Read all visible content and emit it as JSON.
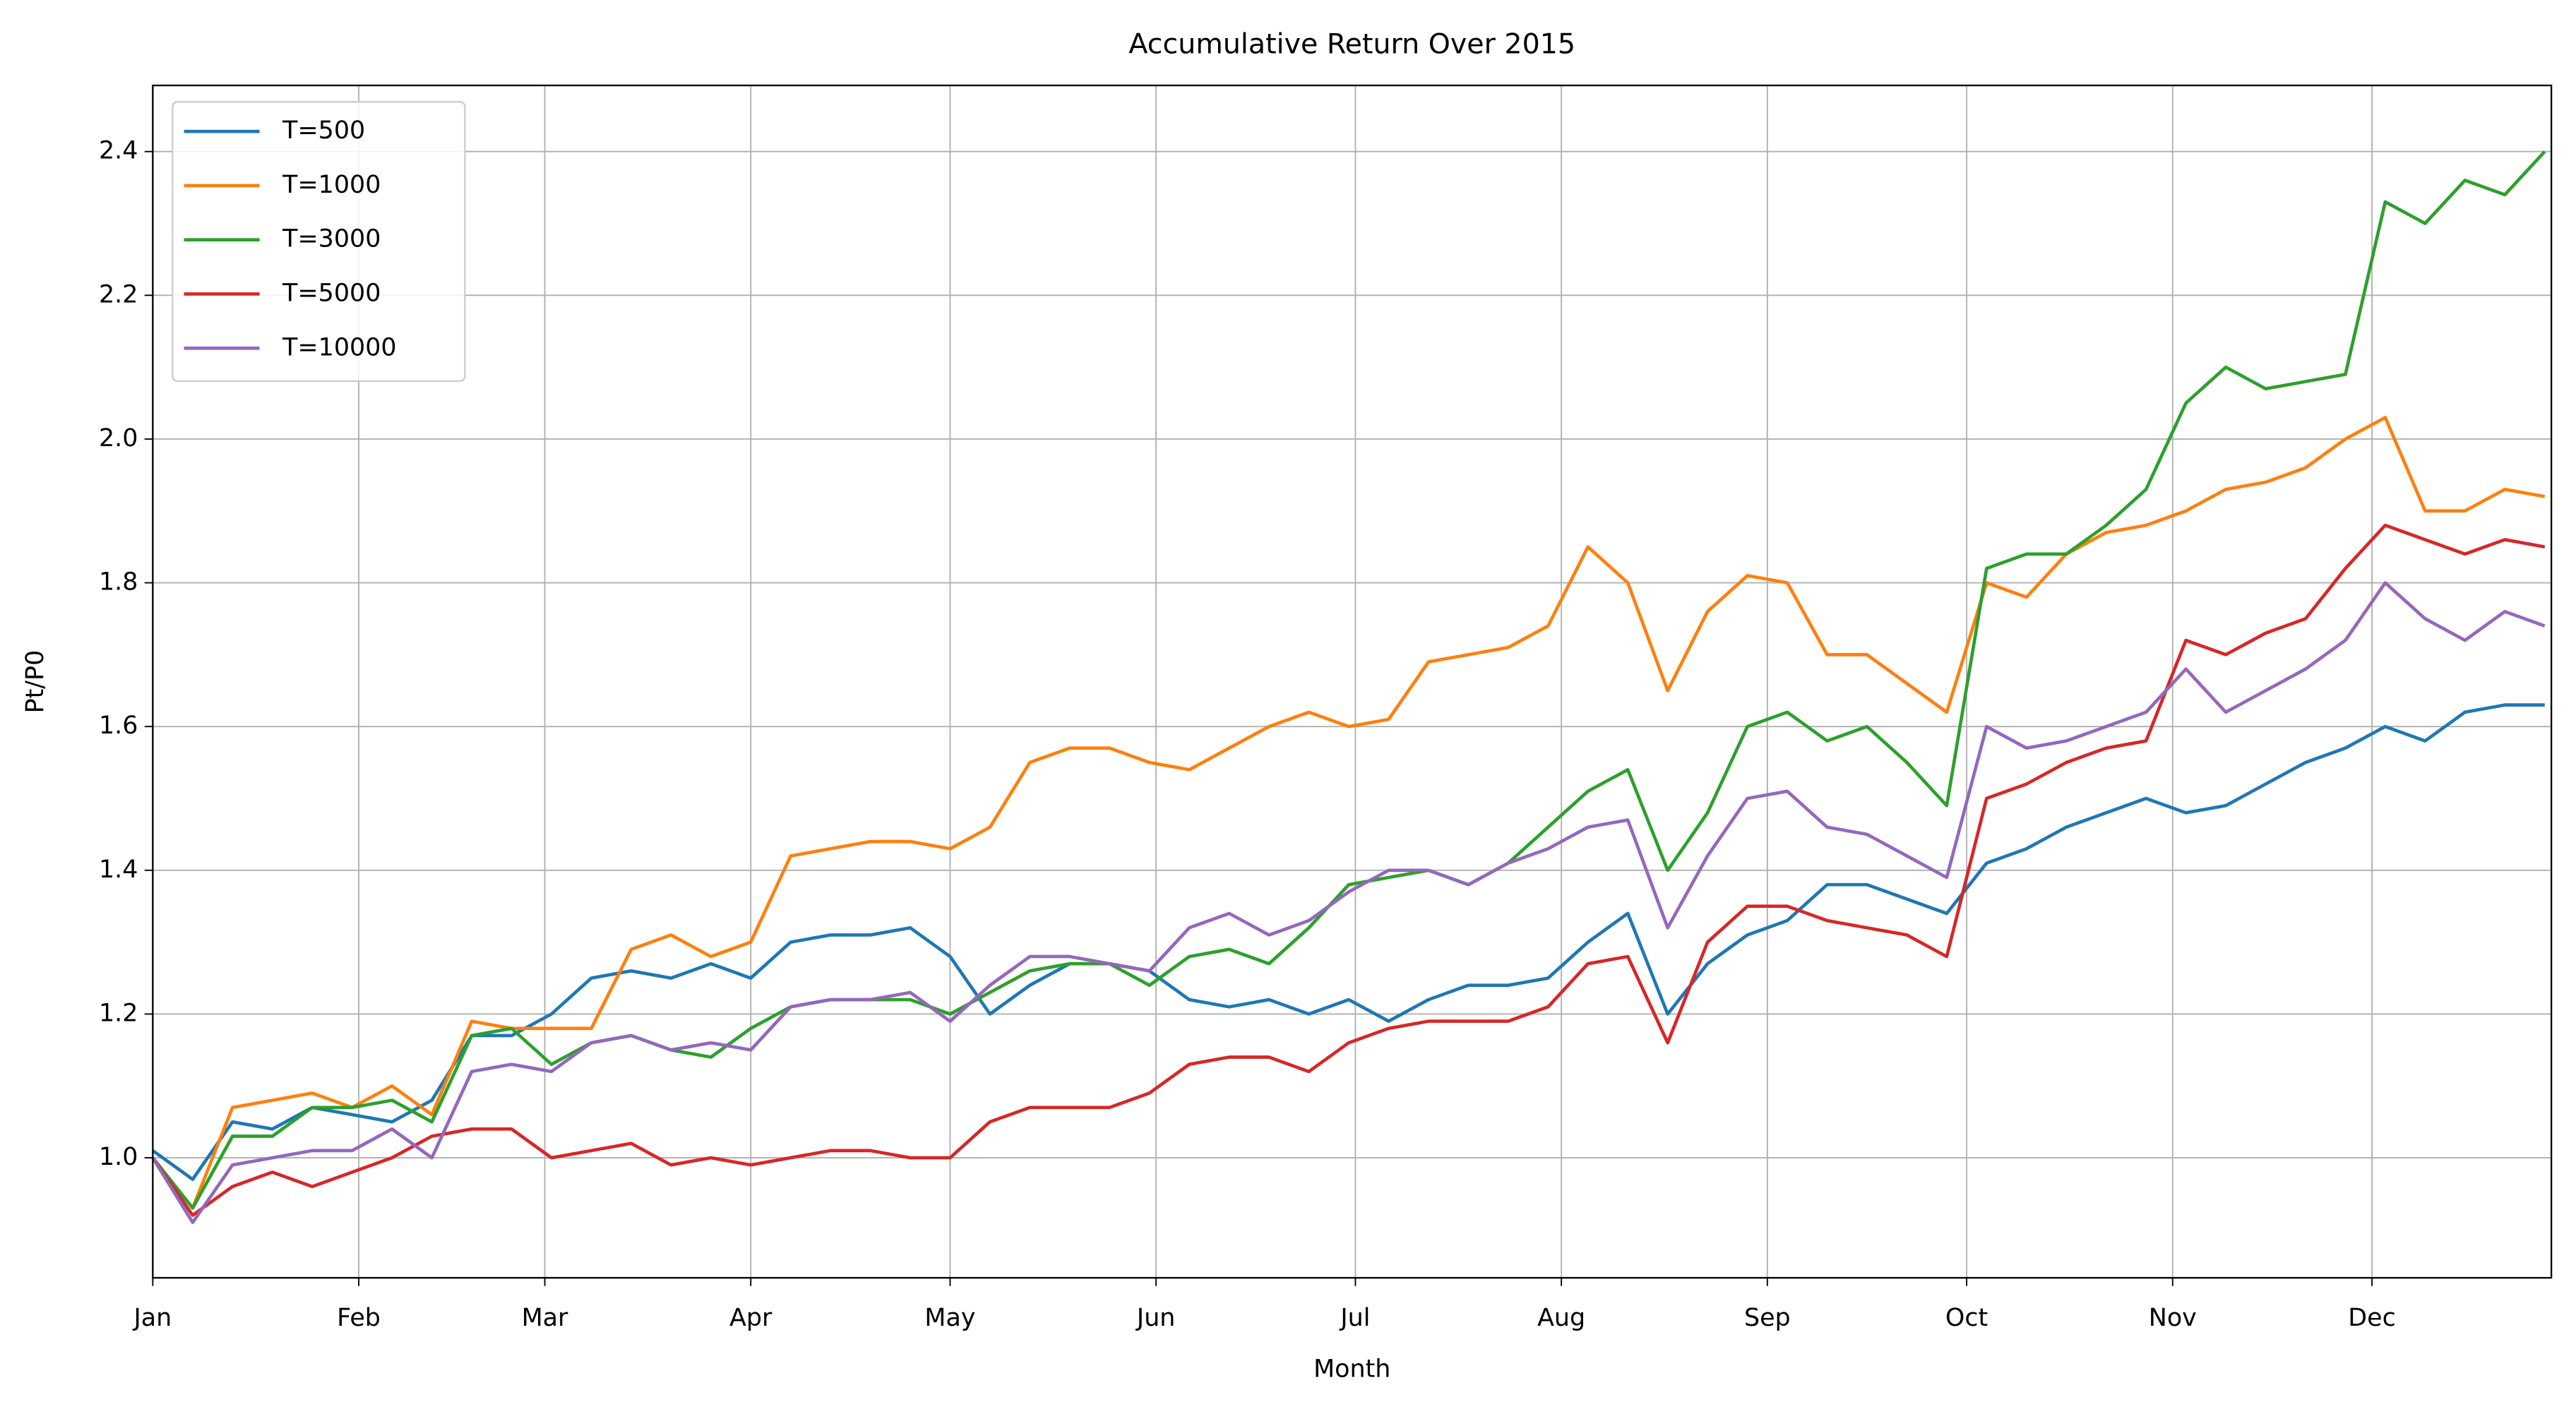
{
  "chart_data": {
    "type": "line",
    "title": "Accumulative Return Over 2015",
    "xlabel": "Month",
    "ylabel": "Pt/P0",
    "x": [
      1,
      7,
      13,
      19,
      25,
      31,
      37,
      43,
      49,
      55,
      61,
      67,
      73,
      79,
      85,
      91,
      97,
      103,
      109,
      115,
      121,
      127,
      133,
      139,
      145,
      151,
      157,
      163,
      169,
      175,
      181,
      187,
      193,
      199,
      205,
      211,
      217,
      223,
      229,
      235,
      241,
      247,
      253,
      259,
      265,
      271,
      277,
      283,
      289,
      295,
      301,
      307,
      313,
      319,
      325,
      331,
      337,
      343,
      349,
      355,
      361
    ],
    "xlim": [
      1,
      362
    ],
    "xticks": [
      {
        "value": 1,
        "label": "Jan"
      },
      {
        "value": 32,
        "label": "Feb"
      },
      {
        "value": 60,
        "label": "Mar"
      },
      {
        "value": 91,
        "label": "Apr"
      },
      {
        "value": 121,
        "label": "May"
      },
      {
        "value": 152,
        "label": "Jun"
      },
      {
        "value": 182,
        "label": "Jul"
      },
      {
        "value": 213,
        "label": "Aug"
      },
      {
        "value": 244,
        "label": "Sep"
      },
      {
        "value": 274,
        "label": "Oct"
      },
      {
        "value": 305,
        "label": "Nov"
      },
      {
        "value": 335,
        "label": "Dec"
      }
    ],
    "ylim": [
      0.833,
      2.492
    ],
    "yticks": [
      {
        "value": 1.0,
        "label": "1.0"
      },
      {
        "value": 1.2,
        "label": "1.2"
      },
      {
        "value": 1.4,
        "label": "1.4"
      },
      {
        "value": 1.6,
        "label": "1.6"
      },
      {
        "value": 1.8,
        "label": "1.8"
      },
      {
        "value": 2.0,
        "label": "2.0"
      },
      {
        "value": 2.2,
        "label": "2.2"
      },
      {
        "value": 2.4,
        "label": "2.4"
      }
    ],
    "grid": true,
    "legend": "upper left",
    "series": [
      {
        "name": "T=500",
        "color": "#1f77b4",
        "values": [
          1.01,
          0.97,
          1.05,
          1.04,
          1.07,
          1.06,
          1.05,
          1.08,
          1.17,
          1.17,
          1.2,
          1.25,
          1.26,
          1.25,
          1.27,
          1.25,
          1.3,
          1.31,
          1.31,
          1.32,
          1.28,
          1.2,
          1.24,
          1.27,
          1.27,
          1.26,
          1.22,
          1.21,
          1.22,
          1.2,
          1.22,
          1.19,
          1.22,
          1.24,
          1.24,
          1.25,
          1.3,
          1.34,
          1.2,
          1.27,
          1.31,
          1.33,
          1.38,
          1.38,
          1.36,
          1.34,
          1.41,
          1.43,
          1.46,
          1.48,
          1.5,
          1.48,
          1.49,
          1.52,
          1.55,
          1.57,
          1.6,
          1.58,
          1.62,
          1.63,
          1.63
        ]
      },
      {
        "name": "T=1000",
        "color": "#ff7f0e",
        "values": [
          1.0,
          0.93,
          1.07,
          1.08,
          1.09,
          1.07,
          1.1,
          1.06,
          1.19,
          1.18,
          1.18,
          1.18,
          1.29,
          1.31,
          1.28,
          1.3,
          1.42,
          1.43,
          1.44,
          1.44,
          1.43,
          1.46,
          1.55,
          1.57,
          1.57,
          1.55,
          1.54,
          1.57,
          1.6,
          1.62,
          1.6,
          1.61,
          1.69,
          1.7,
          1.71,
          1.74,
          1.85,
          1.8,
          1.65,
          1.76,
          1.81,
          1.8,
          1.7,
          1.7,
          1.66,
          1.62,
          1.8,
          1.78,
          1.84,
          1.87,
          1.88,
          1.9,
          1.93,
          1.94,
          1.96,
          2.0,
          2.03,
          1.9,
          1.9,
          1.93,
          1.92
        ]
      },
      {
        "name": "T=3000",
        "color": "#2ca02c",
        "values": [
          1.0,
          0.93,
          1.03,
          1.03,
          1.07,
          1.07,
          1.08,
          1.05,
          1.17,
          1.18,
          1.13,
          1.16,
          1.17,
          1.15,
          1.14,
          1.18,
          1.21,
          1.22,
          1.22,
          1.22,
          1.2,
          1.23,
          1.26,
          1.27,
          1.27,
          1.24,
          1.28,
          1.29,
          1.27,
          1.32,
          1.38,
          1.39,
          1.4,
          1.38,
          1.41,
          1.46,
          1.51,
          1.54,
          1.4,
          1.48,
          1.6,
          1.62,
          1.58,
          1.6,
          1.55,
          1.49,
          1.82,
          1.84,
          1.84,
          1.88,
          1.93,
          2.05,
          2.1,
          2.07,
          2.08,
          2.09,
          2.33,
          2.3,
          2.36,
          2.34,
          2.4
        ]
      },
      {
        "name": "T=5000",
        "color": "#d62728",
        "values": [
          1.0,
          0.92,
          0.96,
          0.98,
          0.96,
          0.98,
          1.0,
          1.03,
          1.04,
          1.04,
          1.0,
          1.01,
          1.02,
          0.99,
          1.0,
          0.99,
          1.0,
          1.01,
          1.01,
          1.0,
          1.0,
          1.05,
          1.07,
          1.07,
          1.07,
          1.09,
          1.13,
          1.14,
          1.14,
          1.12,
          1.16,
          1.18,
          1.19,
          1.19,
          1.19,
          1.21,
          1.27,
          1.28,
          1.16,
          1.3,
          1.35,
          1.35,
          1.33,
          1.32,
          1.31,
          1.28,
          1.5,
          1.52,
          1.55,
          1.57,
          1.58,
          1.72,
          1.7,
          1.73,
          1.75,
          1.82,
          1.88,
          1.86,
          1.84,
          1.86,
          1.85
        ]
      },
      {
        "name": "T=10000",
        "color": "#9467bd",
        "values": [
          1.0,
          0.91,
          0.99,
          1.0,
          1.01,
          1.01,
          1.04,
          1.0,
          1.12,
          1.13,
          1.12,
          1.16,
          1.17,
          1.15,
          1.16,
          1.15,
          1.21,
          1.22,
          1.22,
          1.23,
          1.19,
          1.24,
          1.28,
          1.28,
          1.27,
          1.26,
          1.32,
          1.34,
          1.31,
          1.33,
          1.37,
          1.4,
          1.4,
          1.38,
          1.41,
          1.43,
          1.46,
          1.47,
          1.32,
          1.42,
          1.5,
          1.51,
          1.46,
          1.45,
          1.42,
          1.39,
          1.6,
          1.57,
          1.58,
          1.6,
          1.62,
          1.68,
          1.62,
          1.65,
          1.68,
          1.72,
          1.8,
          1.75,
          1.72,
          1.76,
          1.74
        ]
      }
    ]
  }
}
